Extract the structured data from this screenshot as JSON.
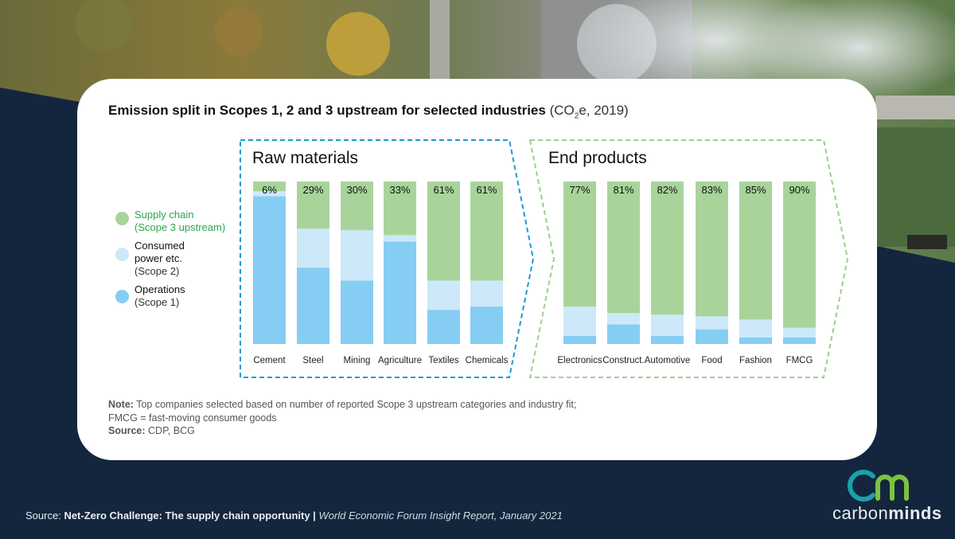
{
  "colors": {
    "supply_chain": "#a8d49b",
    "consumed_power": "#cde8f8",
    "operations": "#86cdf4",
    "raw_border": "#1b9ad6",
    "end_border": "#9ccf8f",
    "background": "#14263d",
    "brand_teal": "#1aa1a8",
    "brand_green": "#7cc242"
  },
  "title": {
    "main": "Emission split in Scopes 1, 2 and 3 upstream for selected industries",
    "paren_open": "(CO",
    "subscript": "2",
    "paren_close": "e, 2019)"
  },
  "legend": [
    {
      "label": "Supply chain",
      "scope": "(Scope 3 upstream)",
      "color": "#a8d49b"
    },
    {
      "label": "Consumed power etc.",
      "label_line1": "Consumed",
      "label_line2": "power etc.",
      "scope": "(Scope 2)",
      "color": "#cde8f8"
    },
    {
      "label": "Operations",
      "scope": "(Scope 1)",
      "color": "#86cdf4"
    }
  ],
  "groups": {
    "raw": "Raw materials",
    "end": "End products"
  },
  "chart_data": {
    "type": "bar",
    "stacked": true,
    "percent": true,
    "categories": [
      "Cement",
      "Steel",
      "Mining",
      "Agriculture",
      "Textiles",
      "Chemicals",
      "Electronics",
      "Construct.",
      "Automotive",
      "Food",
      "Fashion",
      "FMCG"
    ],
    "groups": [
      {
        "name": "Raw materials",
        "categories": [
          "Cement",
          "Steel",
          "Mining",
          "Agriculture",
          "Textiles",
          "Chemicals"
        ]
      },
      {
        "name": "End products",
        "categories": [
          "Electronics",
          "Construct.",
          "Automotive",
          "Food",
          "Fashion",
          "FMCG"
        ]
      }
    ],
    "series": [
      {
        "name": "Operations (Scope 1)",
        "values": [
          91,
          47,
          39,
          63,
          21,
          23,
          5,
          12,
          5,
          9,
          4,
          4
        ]
      },
      {
        "name": "Consumed power etc. (Scope 2)",
        "values": [
          3,
          24,
          31,
          4,
          18,
          16,
          18,
          7,
          13,
          8,
          11,
          6
        ]
      },
      {
        "name": "Supply chain (Scope 3 upstream)",
        "values": [
          6,
          29,
          30,
          33,
          61,
          61,
          77,
          81,
          82,
          83,
          85,
          90
        ]
      }
    ],
    "data_labels": [
      "6%",
      "29%",
      "30%",
      "33%",
      "61%",
      "61%",
      "77%",
      "81%",
      "82%",
      "83%",
      "85%",
      "90%"
    ],
    "ylim": [
      0,
      100
    ]
  },
  "notes": {
    "note_label": "Note:",
    "note_text": "Top companies selected based on number of reported Scope 3 upstream categories and industry fit;",
    "note_line2": "FMCG = fast-moving consumer goods",
    "source_label": "Source:",
    "source_text": "CDP, BCG"
  },
  "footer": {
    "prefix": "Source:",
    "report": "Net-Zero Challenge: The supply chain opportunity |",
    "publisher": "World Economic Forum Insight Report, January 2021"
  },
  "brand": {
    "logo_mark": "cm",
    "word_light": "carbon",
    "word_bold": "minds"
  }
}
